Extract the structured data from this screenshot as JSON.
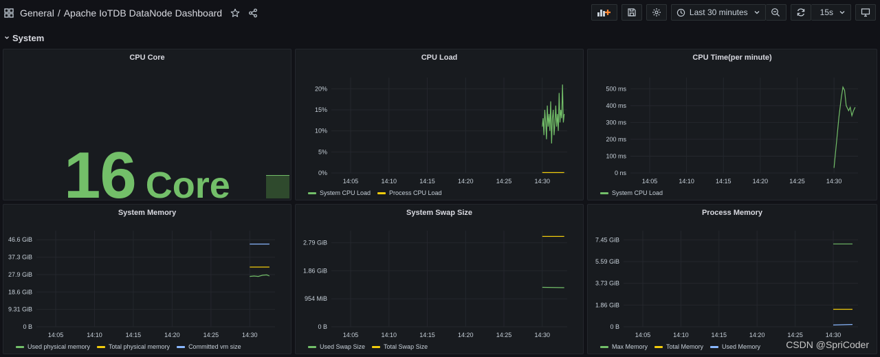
{
  "header": {
    "breadcrumb_root": "General",
    "separator": "/",
    "dashboard_title": "Apache IoTDB DataNode Dashboard",
    "time_range": "Last 30 minutes",
    "refresh_interval": "15s"
  },
  "row": {
    "title": "System"
  },
  "panels": {
    "cpu_core": {
      "title": "CPU Core",
      "value": "16",
      "unit": "Core"
    },
    "cpu_load": {
      "title": "CPU Load",
      "legend": [
        "System CPU Load",
        "Process CPU Load"
      ]
    },
    "cpu_time": {
      "title": "CPU Time(per minute)",
      "legend": [
        "System CPU Load"
      ]
    },
    "system_memory": {
      "title": "System Memory",
      "legend": [
        "Used physical memory",
        "Total physical memory",
        "Committed vm size"
      ]
    },
    "swap_size": {
      "title": "System Swap Size",
      "legend": [
        "Used Swap Size",
        "Total Swap Size"
      ]
    },
    "process_memory": {
      "title": "Process Memory",
      "legend": [
        "Max Memory",
        "Total Memory",
        "Used Memory"
      ]
    }
  },
  "colors": {
    "green": "#73bf69",
    "yellow": "#f2cc0c",
    "blue": "#8ab8ff"
  },
  "watermark": "CSDN @SpriCoder",
  "chart_data": [
    {
      "id": "cpu_load",
      "type": "line",
      "x_ticks": [
        "14:05",
        "14:10",
        "14:15",
        "14:20",
        "14:25",
        "14:30"
      ],
      "y_ticks": [
        "0%",
        "5%",
        "10%",
        "15%",
        "20%"
      ],
      "ylim": [
        0,
        22
      ],
      "series": [
        {
          "name": "System CPU Load",
          "color": "#73bf69",
          "points": [
            [
              14.0,
              11
            ],
            [
              14.1,
              13
            ],
            [
              14.2,
              9
            ],
            [
              14.3,
              15
            ],
            [
              14.4,
              12
            ],
            [
              14.5,
              8
            ],
            [
              14.6,
              16
            ],
            [
              14.7,
              11
            ],
            [
              14.8,
              14
            ],
            [
              14.9,
              10
            ],
            [
              15.0,
              17
            ],
            [
              15.1,
              7
            ],
            [
              15.2,
              13
            ],
            [
              15.3,
              15
            ],
            [
              15.4,
              9
            ],
            [
              15.5,
              12
            ],
            [
              15.6,
              16
            ],
            [
              15.7,
              11
            ],
            [
              15.8,
              14
            ],
            [
              15.9,
              10
            ],
            [
              16.0,
              19
            ],
            [
              16.1,
              12
            ],
            [
              16.2,
              15
            ],
            [
              16.3,
              13
            ],
            [
              16.4,
              21
            ],
            [
              16.5,
              12
            ],
            [
              16.6,
              14
            ]
          ]
        },
        {
          "name": "Process CPU Load",
          "color": "#f2cc0c",
          "points": [
            [
              14.0,
              0.1
            ],
            [
              16.6,
              0.1
            ]
          ]
        }
      ]
    },
    {
      "id": "cpu_time",
      "type": "line",
      "x_ticks": [
        "14:05",
        "14:10",
        "14:15",
        "14:20",
        "14:25",
        "14:30"
      ],
      "y_ticks": [
        "0 ns",
        "100 ms",
        "200 ms",
        "300 ms",
        "400 ms",
        "500 ms"
      ],
      "ylim": [
        0,
        550
      ],
      "series": [
        {
          "name": "System CPU Load",
          "color": "#73bf69",
          "points": [
            [
              30.0,
              30
            ],
            [
              30.3,
              180
            ],
            [
              30.6,
              330
            ],
            [
              30.9,
              450
            ],
            [
              31.1,
              510
            ],
            [
              31.3,
              490
            ],
            [
              31.5,
              400
            ],
            [
              31.8,
              370
            ],
            [
              32.0,
              390
            ],
            [
              32.2,
              340
            ],
            [
              32.4,
              370
            ],
            [
              32.6,
              390
            ]
          ]
        }
      ]
    },
    {
      "id": "system_memory",
      "type": "line",
      "x_ticks": [
        "14:05",
        "14:10",
        "14:15",
        "14:20",
        "14:25",
        "14:30"
      ],
      "y_ticks": [
        "0 B",
        "9.31 GiB",
        "18.6 GiB",
        "27.9 GiB",
        "37.3 GiB",
        "46.6 GiB"
      ],
      "ylim": [
        0,
        50
      ],
      "series": [
        {
          "name": "Used physical memory",
          "color": "#73bf69",
          "points": [
            [
              14.0,
              27.0
            ],
            [
              14.5,
              27.2
            ],
            [
              15.0,
              27.0
            ],
            [
              15.5,
              27.6
            ],
            [
              16.0,
              27.8
            ],
            [
              16.3,
              27.2
            ]
          ]
        },
        {
          "name": "Total physical memory",
          "color": "#f2cc0c",
          "points": [
            [
              14.0,
              32.0
            ],
            [
              16.3,
              32.0
            ]
          ]
        },
        {
          "name": "Committed vm size",
          "color": "#8ab8ff",
          "points": [
            [
              14.0,
              44.3
            ],
            [
              16.3,
              44.3
            ]
          ]
        }
      ]
    },
    {
      "id": "swap_size",
      "type": "line",
      "x_ticks": [
        "14:05",
        "14:10",
        "14:15",
        "14:20",
        "14:25",
        "14:30"
      ],
      "y_ticks": [
        "0 B",
        "954 MiB",
        "1.86 GiB",
        "2.79 GiB"
      ],
      "ylim": [
        0,
        3.1
      ],
      "series": [
        {
          "name": "Used Swap Size",
          "color": "#73bf69",
          "points": [
            [
              14.0,
              1.31
            ],
            [
              16.6,
              1.3
            ]
          ]
        },
        {
          "name": "Total Swap Size",
          "color": "#f2cc0c",
          "points": [
            [
              14.0,
              3.0
            ],
            [
              16.6,
              3.0
            ]
          ]
        }
      ]
    },
    {
      "id": "process_memory",
      "type": "line",
      "x_ticks": [
        "14:05",
        "14:10",
        "14:15",
        "14:20",
        "14:25",
        "14:30"
      ],
      "y_ticks": [
        "0 B",
        "1.86 GiB",
        "3.73 GiB",
        "5.59 GiB",
        "7.45 GiB"
      ],
      "ylim": [
        0,
        8
      ],
      "series": [
        {
          "name": "Max Memory",
          "color": "#73bf69",
          "points": [
            [
              14.0,
              7.1
            ],
            [
              16.3,
              7.1
            ]
          ]
        },
        {
          "name": "Total Memory",
          "color": "#f2cc0c",
          "points": [
            [
              14.0,
              1.5
            ],
            [
              16.3,
              1.5
            ]
          ]
        },
        {
          "name": "Used Memory",
          "color": "#8ab8ff",
          "points": [
            [
              14.0,
              0.15
            ],
            [
              16.3,
              0.2
            ]
          ]
        }
      ]
    }
  ]
}
